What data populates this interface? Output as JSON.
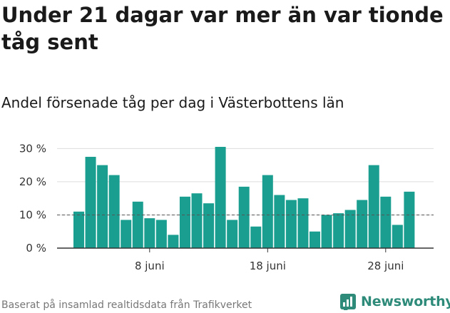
{
  "header": {
    "title": "Under 21 dagar var mer än var tionde tåg sent",
    "subtitle": "Andel försenade tåg per dag i Västerbottens län"
  },
  "footer": {
    "source": "Baserat på insamlad realtidsdata från Trafikverket",
    "brand": "Newsworthy"
  },
  "colors": {
    "bar": "#1a9e90",
    "grid": "#dddddd",
    "reference_line": "#555555",
    "brand": "#2e8b7a"
  },
  "chart_data": {
    "type": "bar",
    "categories": [
      "2 juni",
      "3 juni",
      "4 juni",
      "5 juni",
      "6 juni",
      "7 juni",
      "8 juni",
      "9 juni",
      "10 juni",
      "11 juni",
      "12 juni",
      "13 juni",
      "14 juni",
      "15 juni",
      "16 juni",
      "17 juni",
      "18 juni",
      "19 juni",
      "20 juni",
      "21 juni",
      "22 juni",
      "23 juni",
      "24 juni",
      "25 juni",
      "26 juni",
      "27 juni",
      "28 juni",
      "29 juni",
      "30 juni"
    ],
    "values": [
      11,
      27.5,
      25,
      22,
      8.5,
      14,
      9,
      8.5,
      4,
      15.5,
      16.5,
      13.5,
      30.5,
      8.5,
      18.5,
      6.5,
      22,
      16,
      14.5,
      15,
      5,
      10,
      10.5,
      11.5,
      14.5,
      25,
      15.5,
      7,
      17
    ],
    "yticks": [
      "0 %",
      "10 %",
      "20 %",
      "30 %"
    ],
    "ytick_values": [
      0,
      10,
      20,
      30
    ],
    "xticks": [
      "8 juni",
      "18 juni",
      "28 juni"
    ],
    "xtick_categories": [
      "8 juni",
      "18 juni",
      "28 juni"
    ],
    "ylim": [
      0,
      32
    ],
    "reference_line": 10,
    "grid": true
  }
}
